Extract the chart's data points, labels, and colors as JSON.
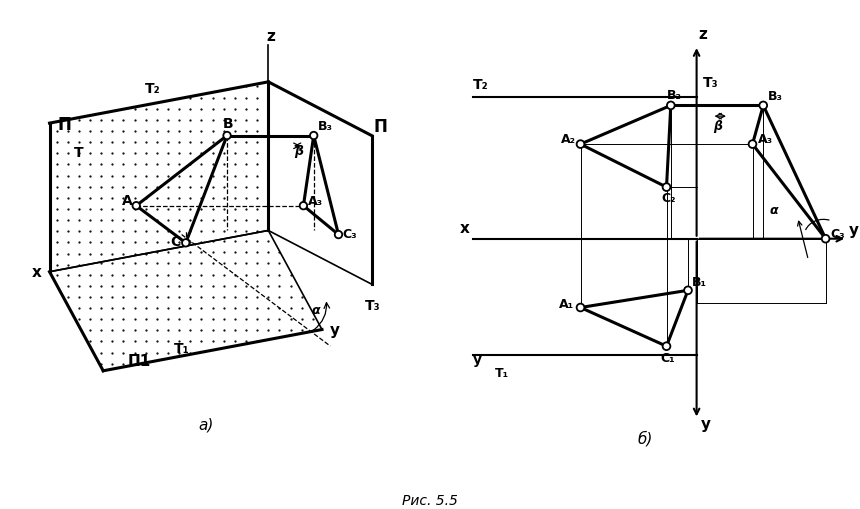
{
  "fig_width": 8.6,
  "fig_height": 5.1,
  "dpi": 100,
  "bg_color": "#ffffff",
  "caption": "Рис. 5.5",
  "label_a": "а)",
  "label_b": "б)",
  "left": {
    "pi_label": "Π",
    "pi1_label": "Π1",
    "pi_right_label": "Π",
    "T2_label": "T₂",
    "T1_label": "T₁",
    "T3_label": "T₃",
    "T_label": "T",
    "x_label": "x",
    "z_label": "z",
    "y_label": "y",
    "A_label": "A",
    "B_label": "B",
    "C_label": "C",
    "A3_label": "A₃",
    "B3_label": "B₃",
    "C3_label": "C₃",
    "alpha_label": "α",
    "beta_label": "β"
  },
  "right": {
    "T1_label": "T₁",
    "T2_label": "T₂",
    "T3_label": "T₃",
    "x_label": "x",
    "y_label": "y",
    "z_label": "z",
    "A1_label": "A₁",
    "B1_label": "B₁",
    "C1_label": "C₁",
    "A2_label": "A₂",
    "B2_label": "B₂",
    "C2_label": "C₂",
    "A3_label": "A₃",
    "B3_label": "B₃",
    "C3_label": "C₃",
    "alpha_label": "α",
    "beta_label": "β"
  }
}
